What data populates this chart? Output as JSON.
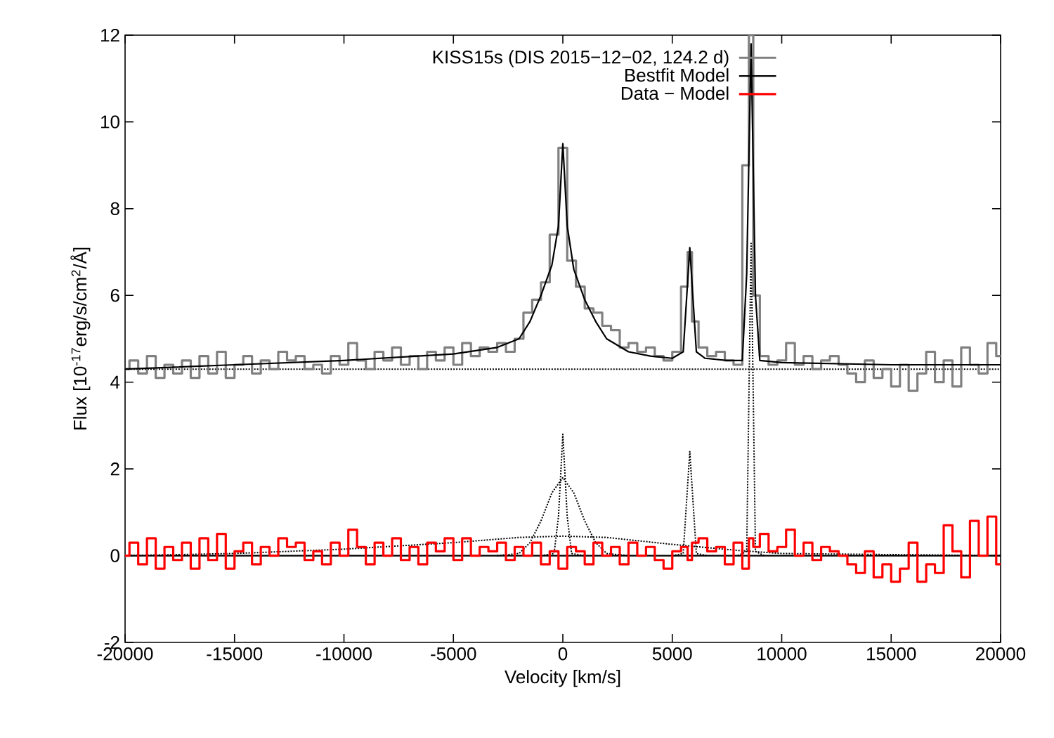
{
  "chart_data": {
    "type": "line",
    "xlabel": "Velocity [km/s]",
    "ylabel": "Flux [10$^{-17}$erg/s/cm$^{2}$/Å]",
    "xlim": [
      -20000,
      20000
    ],
    "ylim": [
      -2,
      12
    ],
    "xticks": [
      -20000,
      -15000,
      -10000,
      -5000,
      0,
      5000,
      10000,
      15000,
      20000
    ],
    "yticks": [
      -2,
      0,
      2,
      4,
      6,
      8,
      10,
      12
    ],
    "grid": false,
    "legend": "top right",
    "ref_lines": [
      {
        "axis": "y",
        "value": 0,
        "color": "#000000",
        "line_style": "solid"
      }
    ],
    "series": [
      {
        "name": "KISS15s (DIS 2015−12−02, 124.2 d)",
        "type": "step",
        "color": "#808080",
        "x": [
          -20000,
          -19600,
          -19200,
          -18800,
          -18400,
          -18000,
          -17600,
          -17200,
          -16800,
          -16400,
          -16000,
          -15600,
          -15200,
          -14800,
          -14400,
          -14000,
          -13600,
          -13200,
          -12800,
          -12400,
          -12000,
          -11600,
          -11200,
          -10800,
          -10400,
          -10000,
          -9600,
          -9200,
          -8800,
          -8400,
          -8000,
          -7600,
          -7200,
          -6800,
          -6400,
          -6000,
          -5600,
          -5200,
          -4800,
          -4400,
          -4000,
          -3600,
          -3200,
          -2800,
          -2400,
          -2000,
          -1600,
          -1200,
          -800,
          -400,
          0,
          400,
          800,
          1200,
          1600,
          2000,
          2400,
          2800,
          3200,
          3600,
          4000,
          4400,
          4800,
          5200,
          5600,
          5800,
          6000,
          6400,
          6800,
          7200,
          7600,
          8000,
          8400,
          8600,
          8800,
          9200,
          9600,
          10000,
          10400,
          10800,
          11200,
          11600,
          12000,
          12400,
          12800,
          13200,
          13600,
          14000,
          14400,
          14800,
          15200,
          15600,
          16000,
          16400,
          16800,
          17200,
          17600,
          18000,
          18400,
          18800,
          19200,
          19600,
          20000
        ],
        "values": [
          4.3,
          4.5,
          4.2,
          4.6,
          4.1,
          4.4,
          4.2,
          4.5,
          4.1,
          4.6,
          4.2,
          4.7,
          4.1,
          4.4,
          4.6,
          4.2,
          4.5,
          4.3,
          4.7,
          4.5,
          4.6,
          4.3,
          4.4,
          4.2,
          4.6,
          4.4,
          4.9,
          4.5,
          4.3,
          4.7,
          4.5,
          4.8,
          4.4,
          4.6,
          4.3,
          4.7,
          4.5,
          4.8,
          4.4,
          4.9,
          4.6,
          4.8,
          4.7,
          4.9,
          4.7,
          5.0,
          5.6,
          5.9,
          6.3,
          7.4,
          9.4,
          6.8,
          6.2,
          5.7,
          5.6,
          5.3,
          5.2,
          4.8,
          4.9,
          4.7,
          4.8,
          4.6,
          4.5,
          4.7,
          6.2,
          7.0,
          5.4,
          4.8,
          4.6,
          4.7,
          4.5,
          4.4,
          9.0,
          12.0,
          6.0,
          4.6,
          4.4,
          4.5,
          4.9,
          4.4,
          4.6,
          4.3,
          4.5,
          4.6,
          4.4,
          4.2,
          4.0,
          4.5,
          4.1,
          4.3,
          3.9,
          4.4,
          3.8,
          4.2,
          4.7,
          4.0,
          4.5,
          3.9,
          4.8,
          4.4,
          4.2,
          4.9,
          4.6
        ]
      },
      {
        "name": "Bestfit Model",
        "color": "#000000",
        "x": [
          -20000,
          -15000,
          -10000,
          -5000,
          -3000,
          -2000,
          -1500,
          -1000,
          -500,
          -200,
          0,
          200,
          500,
          1000,
          1500,
          2000,
          3000,
          4000,
          5000,
          5500,
          5800,
          6100,
          6500,
          7500,
          8200,
          8400,
          8600,
          8800,
          9000,
          10000,
          15000,
          20000
        ],
        "values": [
          4.3,
          4.4,
          4.5,
          4.65,
          4.8,
          5.0,
          5.4,
          6.0,
          6.7,
          7.6,
          9.5,
          7.6,
          6.6,
          5.9,
          5.4,
          5.0,
          4.7,
          4.6,
          4.55,
          4.7,
          7.1,
          4.7,
          4.55,
          4.5,
          4.5,
          6.5,
          11.8,
          6.0,
          4.5,
          4.45,
          4.4,
          4.4
        ]
      },
      {
        "name": "Data − Model",
        "type": "step",
        "color": "#ff0000",
        "x": [
          -20000,
          -19600,
          -19200,
          -18800,
          -18400,
          -18000,
          -17600,
          -17200,
          -16800,
          -16400,
          -16000,
          -15600,
          -15200,
          -14800,
          -14400,
          -14000,
          -13600,
          -13200,
          -12800,
          -12400,
          -12000,
          -11600,
          -11200,
          -10800,
          -10400,
          -10000,
          -9600,
          -9200,
          -8800,
          -8400,
          -8000,
          -7600,
          -7200,
          -6800,
          -6400,
          -6000,
          -5600,
          -5200,
          -4800,
          -4400,
          -4000,
          -3600,
          -3200,
          -2800,
          -2400,
          -2000,
          -1600,
          -1200,
          -800,
          -400,
          0,
          400,
          800,
          1200,
          1600,
          2000,
          2400,
          2800,
          3200,
          3600,
          4000,
          4400,
          4800,
          5200,
          5600,
          5800,
          6000,
          6400,
          6800,
          7200,
          7600,
          8000,
          8400,
          8600,
          8800,
          9200,
          9600,
          10000,
          10400,
          10800,
          11200,
          11600,
          12000,
          12400,
          12800,
          13200,
          13600,
          14000,
          14400,
          14800,
          15200,
          15600,
          16000,
          16400,
          16800,
          17200,
          17600,
          18000,
          18400,
          18800,
          19200,
          19600,
          20000
        ],
        "values": [
          0.0,
          0.3,
          -0.2,
          0.4,
          -0.3,
          0.2,
          -0.1,
          0.3,
          -0.3,
          0.4,
          -0.1,
          0.5,
          -0.3,
          0.1,
          0.3,
          -0.2,
          0.2,
          0.0,
          0.4,
          0.2,
          0.3,
          -0.1,
          0.1,
          -0.2,
          0.3,
          0.0,
          0.6,
          0.2,
          -0.2,
          0.3,
          0.0,
          0.4,
          -0.1,
          0.2,
          -0.2,
          0.3,
          0.1,
          0.4,
          -0.1,
          0.4,
          0.0,
          0.2,
          0.1,
          0.3,
          -0.1,
          0.2,
          0.0,
          0.3,
          -0.2,
          0.1,
          -0.3,
          0.2,
          0.1,
          -0.2,
          0.3,
          0.0,
          0.2,
          -0.2,
          0.3,
          0.0,
          0.2,
          -0.1,
          -0.3,
          0.1,
          0.2,
          -0.1,
          0.3,
          0.4,
          0.1,
          0.2,
          -0.2,
          0.3,
          -0.3,
          0.4,
          0.2,
          0.5,
          0.1,
          0.2,
          0.6,
          0.0,
          0.3,
          -0.1,
          0.2,
          0.1,
          0.0,
          -0.2,
          -0.4,
          0.1,
          -0.5,
          -0.2,
          -0.6,
          -0.3,
          0.3,
          -0.6,
          -0.2,
          -0.4,
          0.7,
          0.1,
          -0.5,
          0.8,
          0.0,
          0.9,
          -0.2
        ]
      },
      {
        "color": "#000000",
        "line_style": "dotted",
        "x": [
          -20000,
          20000
        ],
        "values": [
          4.3,
          4.3
        ]
      },
      {
        "color": "#000000",
        "line_style": "dotted",
        "x": [
          -20000,
          -15000,
          -10000,
          -5000,
          -2000,
          0,
          2000,
          5000,
          8000,
          10000,
          20000
        ],
        "values": [
          0,
          0.05,
          0.15,
          0.3,
          0.42,
          0.45,
          0.42,
          0.26,
          0.12,
          0.05,
          0
        ]
      },
      {
        "color": "#000000",
        "line_style": "dotted",
        "x": [
          -3000,
          -2000,
          -1500,
          -1000,
          -500,
          0,
          500,
          1000,
          1500,
          2000,
          3000
        ],
        "values": [
          0,
          0.05,
          0.3,
          0.8,
          1.45,
          1.8,
          1.45,
          0.8,
          0.3,
          0.05,
          0
        ]
      },
      {
        "color": "#000000",
        "line_style": "dotted",
        "x": [
          -1000,
          -400,
          -200,
          0,
          200,
          400,
          1000
        ],
        "values": [
          0,
          0.05,
          0.9,
          2.8,
          0.9,
          0.05,
          0
        ]
      },
      {
        "color": "#000000",
        "line_style": "dotted",
        "x": [
          5000,
          5500,
          5800,
          6100,
          6600
        ],
        "values": [
          0,
          0.05,
          2.4,
          0.05,
          0
        ]
      },
      {
        "color": "#000000",
        "line_style": "dotted",
        "x": [
          8000,
          8400,
          8600,
          8800,
          9200
        ],
        "values": [
          0,
          0.1,
          7.2,
          0.1,
          0
        ]
      }
    ]
  }
}
